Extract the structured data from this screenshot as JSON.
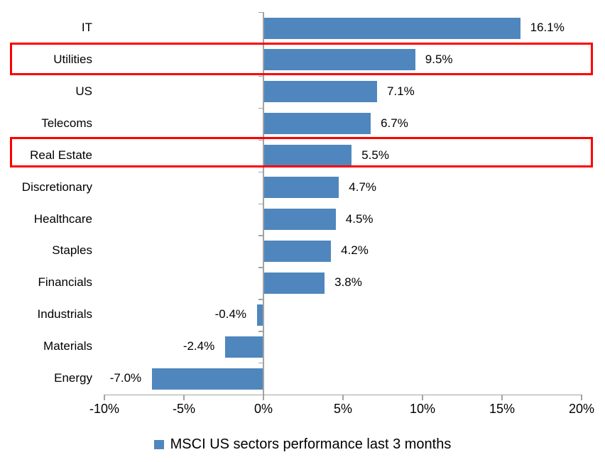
{
  "chart_data": {
    "type": "bar",
    "orientation": "horizontal",
    "title": "",
    "categories": [
      "IT",
      "Utilities",
      "US",
      "Telecoms",
      "Real Estate",
      "Discretionary",
      "Healthcare",
      "Staples",
      "Financials",
      "Industrials",
      "Materials",
      "Energy"
    ],
    "values": [
      16.1,
      9.5,
      7.1,
      6.7,
      5.5,
      4.7,
      4.5,
      4.2,
      3.8,
      -0.4,
      -2.4,
      -7.0
    ],
    "value_labels": [
      "16.1%",
      "9.5%",
      "7.1%",
      "6.7%",
      "5.5%",
      "4.7%",
      "4.5%",
      "4.2%",
      "3.8%",
      "-0.4%",
      "-2.4%",
      "-7.0%"
    ],
    "x_tick_values": [
      -10,
      -5,
      0,
      5,
      10,
      15,
      20
    ],
    "x_tick_labels": [
      "-10%",
      "-5%",
      "0%",
      "5%",
      "10%",
      "15%",
      "20%"
    ],
    "xlim": [
      -10,
      20
    ],
    "grid": false,
    "legend": {
      "position": "bottom",
      "label": "MSCI US sectors performance last 3 months"
    },
    "highlighted_categories": [
      "Utilities",
      "Real Estate"
    ],
    "colors": {
      "bar": "#4F86BD",
      "highlight_box": "#FE0000",
      "axis": "#A3A3A3",
      "text": "#000000"
    }
  }
}
